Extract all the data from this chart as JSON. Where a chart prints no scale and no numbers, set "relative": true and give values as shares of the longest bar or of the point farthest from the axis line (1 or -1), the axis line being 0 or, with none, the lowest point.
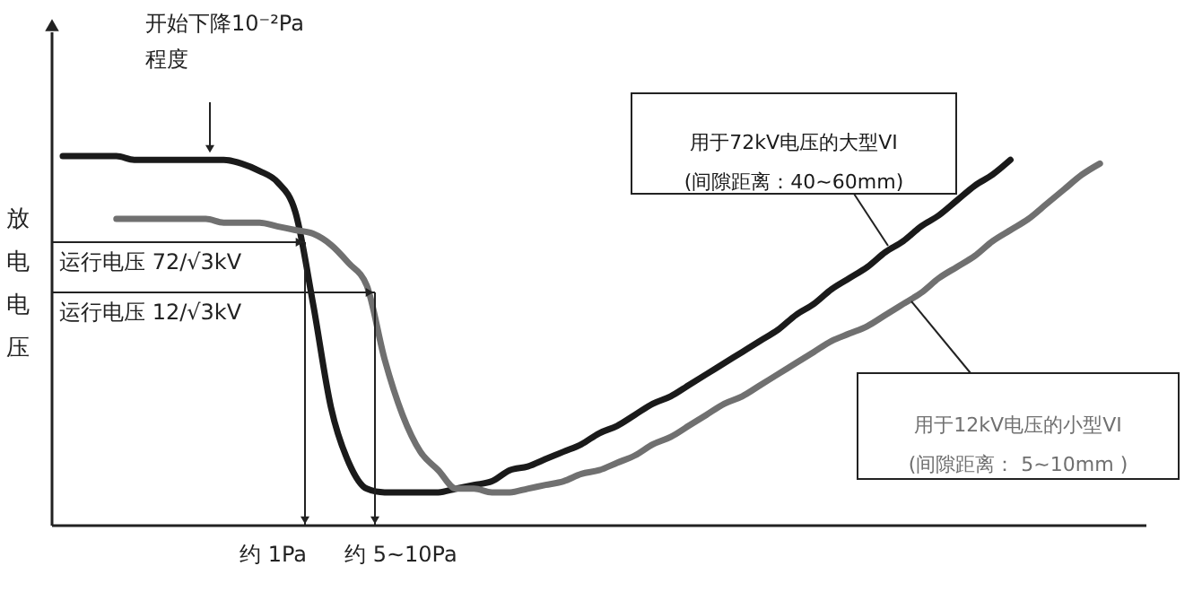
{
  "chart_data": {
    "type": "line",
    "relative": true,
    "ylabel": "放电电压",
    "categories": [
      null,
      null,
      null,
      null,
      null,
      null,
      null,
      null,
      null,
      null,
      null,
      null,
      null,
      null,
      null,
      null,
      null,
      null,
      null,
      null,
      null,
      null,
      null,
      null,
      null,
      null,
      null,
      null,
      null,
      null,
      null,
      null,
      null,
      null,
      null,
      null,
      null,
      null,
      null,
      null,
      null,
      null,
      null,
      null,
      null,
      null,
      null,
      null,
      null,
      null,
      null,
      null,
      null,
      null,
      null,
      null,
      null,
      null,
      null,
      null,
      null
    ],
    "series": [
      {
        "name": "用于72kV电压的大型VI\n(间隙距离：40~60mm)",
        "color": "#1a1a1a",
        "values": [
          1.0,
          1.0,
          1.0,
          1.0,
          0.99,
          0.99,
          0.99,
          0.99,
          0.99,
          0.99,
          0.98,
          0.96,
          0.93,
          0.85,
          0.6,
          0.32,
          0.17,
          0.1,
          0.09,
          0.09,
          0.09,
          0.09,
          0.1,
          0.11,
          0.12,
          0.15,
          0.16,
          0.18,
          0.2,
          0.22,
          0.25,
          0.27,
          0.3,
          0.33,
          0.35,
          0.38,
          0.41,
          0.44,
          0.47,
          0.5,
          0.53,
          0.57,
          0.6,
          0.64,
          0.67,
          0.7,
          0.74,
          0.77,
          0.81,
          0.84,
          0.88,
          0.92,
          0.95,
          0.99,
          null,
          null,
          null,
          null,
          null,
          null,
          null
        ]
      },
      {
        "name": "用于12kV电压的小型VI\n(间隙距离： 5~10mm )",
        "color": "#707070",
        "values": [
          null,
          null,
          null,
          0.83,
          0.83,
          0.83,
          0.83,
          0.83,
          0.83,
          0.82,
          0.82,
          0.82,
          0.81,
          0.8,
          0.79,
          0.76,
          0.71,
          0.65,
          0.45,
          0.3,
          0.2,
          0.15,
          0.1,
          0.1,
          0.09,
          0.09,
          0.1,
          0.11,
          0.12,
          0.14,
          0.15,
          0.17,
          0.19,
          0.22,
          0.24,
          0.27,
          0.3,
          0.33,
          0.35,
          0.38,
          0.41,
          0.44,
          0.47,
          0.5,
          0.52,
          0.54,
          0.57,
          0.6,
          0.63,
          0.67,
          0.7,
          0.73,
          0.77,
          0.8,
          0.83,
          0.87,
          0.91,
          0.95,
          0.98,
          null,
          null
        ]
      }
    ],
    "annotations": [
      "开始下降10⁻²Pa\n程度",
      "运行电压 72/√3kV",
      "运行电压 12/√3kV",
      "约 1Pa",
      "约 5~10Pa"
    ]
  }
}
